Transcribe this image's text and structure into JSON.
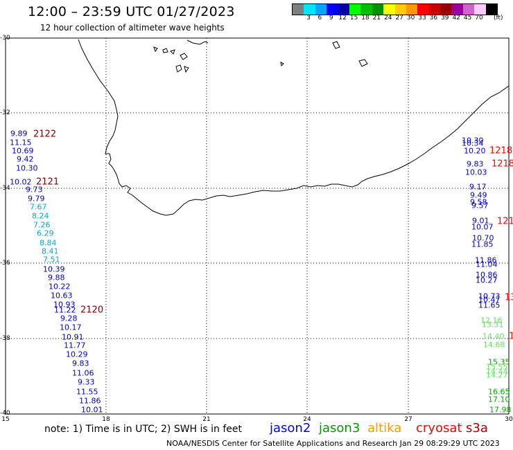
{
  "header": {
    "title": "12:00 – 23:59 UTC 01/27/2023",
    "subtitle": "12 hour collection of altimeter wave heights"
  },
  "legend": {
    "colors": [
      "#7f7f7f",
      "#00e5ff",
      "#00a6ff",
      "#0000ff",
      "#0000aa",
      "#00ff00",
      "#00c000",
      "#009000",
      "#ffff00",
      "#ffcc00",
      "#ff9900",
      "#ff0000",
      "#cc0000",
      "#990000",
      "#990099",
      "#cc66cc",
      "#ffccff",
      "#000000"
    ],
    "labels": [
      "3",
      "6",
      "9",
      "12",
      "15",
      "18",
      "21",
      "24",
      "27",
      "30",
      "33",
      "36",
      "39",
      "42",
      "45",
      "70"
    ],
    "unit": "(ft)"
  },
  "axes": {
    "lat_labels": [
      "-30",
      "-32",
      "-34",
      "-36",
      "-38",
      "-40"
    ],
    "lon_labels": [
      "15",
      "18",
      "21",
      "24",
      "27",
      "30"
    ]
  },
  "passes": {
    "left_orbits": [
      {
        "id": "2122",
        "color": "#800000"
      },
      {
        "id": "2121",
        "color": "#800000"
      },
      {
        "id": "2120",
        "color": "#800000"
      }
    ],
    "right_orbits": [
      {
        "id": "1218",
        "color": "#ff0000"
      },
      {
        "id": "1218",
        "color": "#ff0000"
      },
      {
        "id": "121",
        "color": "#ff0000"
      },
      {
        "id": "13",
        "color": "#ff0000"
      },
      {
        "id": "1",
        "color": "#ff0000"
      }
    ],
    "left_values": [
      {
        "v": "9.89",
        "c": "#0000cc"
      },
      {
        "v": "11.15",
        "c": "#0000cc"
      },
      {
        "v": "10.69",
        "c": "#0000cc"
      },
      {
        "v": "9.42",
        "c": "#0000cc"
      },
      {
        "v": "10.30",
        "c": "#0000cc"
      },
      {
        "v": "10.02",
        "c": "#0000cc"
      },
      {
        "v": "9.73",
        "c": "#0000cc"
      },
      {
        "v": "9.79",
        "c": "#0000cc"
      },
      {
        "v": "7.67",
        "c": "#00aacc"
      },
      {
        "v": "8.24",
        "c": "#00aacc"
      },
      {
        "v": "7.26",
        "c": "#00aacc"
      },
      {
        "v": "6.29",
        "c": "#00aacc"
      },
      {
        "v": "8.84",
        "c": "#00aacc"
      },
      {
        "v": "8.41",
        "c": "#00aacc"
      },
      {
        "v": "7.51",
        "c": "#00aacc"
      },
      {
        "v": "10.39",
        "c": "#0000cc"
      },
      {
        "v": "9.88",
        "c": "#0000cc"
      },
      {
        "v": "10.22",
        "c": "#0000cc"
      },
      {
        "v": "10.63",
        "c": "#0000cc"
      },
      {
        "v": "10.93",
        "c": "#0000cc"
      },
      {
        "v": "11.22",
        "c": "#0000cc"
      },
      {
        "v": "9.28",
        "c": "#0000cc"
      },
      {
        "v": "10.17",
        "c": "#0000cc"
      },
      {
        "v": "10.91",
        "c": "#0000cc"
      },
      {
        "v": "11.77",
        "c": "#0000cc"
      },
      {
        "v": "10.29",
        "c": "#0000cc"
      },
      {
        "v": "9.83",
        "c": "#0000cc"
      },
      {
        "v": "11.06",
        "c": "#0000cc"
      },
      {
        "v": "9.33",
        "c": "#0000cc"
      },
      {
        "v": "11.55",
        "c": "#0000cc"
      },
      {
        "v": "11.86",
        "c": "#0000cc"
      },
      {
        "v": "10.01",
        "c": "#0000cc"
      }
    ],
    "right_values": [
      {
        "v": "10.30",
        "c": "#0000cc"
      },
      {
        "v": "10.34",
        "c": "#0000cc"
      },
      {
        "v": "10.20",
        "c": "#0000cc"
      },
      {
        "v": "9.83",
        "c": "#0000cc"
      },
      {
        "v": "10.03",
        "c": "#0000cc"
      },
      {
        "v": "9.17",
        "c": "#0000cc"
      },
      {
        "v": "9.49",
        "c": "#0000cc"
      },
      {
        "v": "9.58",
        "c": "#0000cc"
      },
      {
        "v": "9.57",
        "c": "#0000cc"
      },
      {
        "v": "9.01",
        "c": "#0000cc"
      },
      {
        "v": "10.07",
        "c": "#0000cc"
      },
      {
        "v": "10.70",
        "c": "#0000cc"
      },
      {
        "v": "11.85",
        "c": "#0000cc"
      },
      {
        "v": "11.86",
        "c": "#0000cc"
      },
      {
        "v": "11.04",
        "c": "#0000cc"
      },
      {
        "v": "10.86",
        "c": "#0000cc"
      },
      {
        "v": "10.27",
        "c": "#0000cc"
      },
      {
        "v": "10.73",
        "c": "#0000cc"
      },
      {
        "v": "10.47",
        "c": "#0000cc"
      },
      {
        "v": "11.65",
        "c": "#0000cc"
      },
      {
        "v": "12.16",
        "c": "#66dd66"
      },
      {
        "v": "13.31",
        "c": "#66dd66"
      },
      {
        "v": "14.40",
        "c": "#66dd66"
      },
      {
        "v": "14.68",
        "c": "#66dd66"
      },
      {
        "v": "15.35",
        "c": "#00aa00"
      },
      {
        "v": "15.55",
        "c": "#66dd66"
      },
      {
        "v": "14.44",
        "c": "#66dd66"
      },
      {
        "v": "14.27",
        "c": "#66dd66"
      },
      {
        "v": "16.65",
        "c": "#00aa00"
      },
      {
        "v": "17.10",
        "c": "#00aa00"
      },
      {
        "v": "17.98",
        "c": "#00aa00"
      }
    ]
  },
  "bottom": {
    "note": "note:  1) Time is in UTC;  2) SWH is in feet",
    "satellites": [
      {
        "name": "jason2",
        "color": "#0000ff"
      },
      {
        "name": "jason3",
        "color": "#009900"
      },
      {
        "name": "altika",
        "color": "#ff9900"
      },
      {
        "name": "cryosat",
        "color": "#ff0000"
      },
      {
        "name": "s3a",
        "color": "#aa0000"
      }
    ],
    "footer": "NOAA/NESDIS Center for Satellite Applications and Research     Jan 29 08:29:29 UTC 2023"
  }
}
